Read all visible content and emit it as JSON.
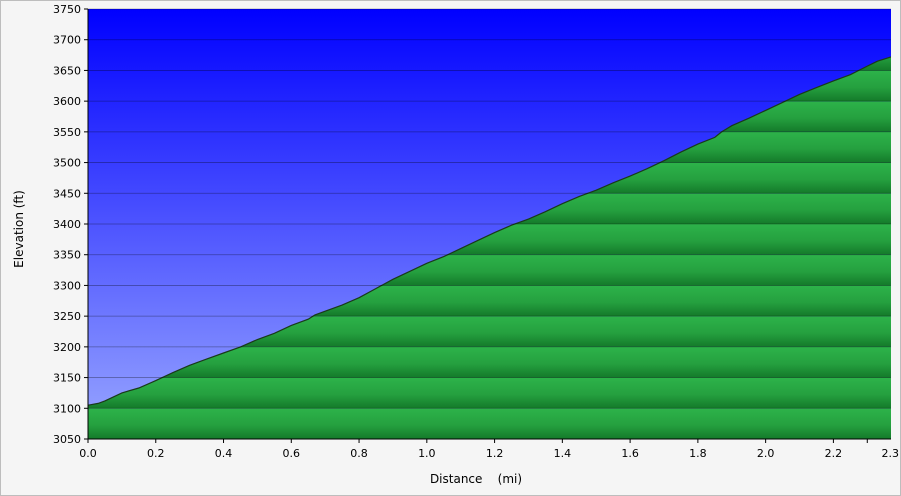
{
  "chart_data": {
    "type": "area",
    "title": "",
    "xlabel": "Distance    (mi)",
    "ylabel": "Elevation (ft)",
    "xlim": [
      0.0,
      2.37
    ],
    "ylim": [
      3050,
      3750
    ],
    "xticks": [
      0.0,
      0.2,
      0.4,
      0.6,
      0.8,
      1.0,
      1.2,
      1.4,
      1.6,
      1.8,
      2.0,
      2.2,
      2.3
    ],
    "xtick_labels": [
      "0.0",
      "0.2",
      "0.4",
      "0.6",
      "0.8",
      "1.0",
      "1.2",
      "1.4",
      "1.6",
      "1.8",
      "2.0",
      "2.2",
      "2.3"
    ],
    "yticks": [
      3050,
      3100,
      3150,
      3200,
      3250,
      3300,
      3350,
      3400,
      3450,
      3500,
      3550,
      3600,
      3650,
      3700,
      3750
    ],
    "ytick_labels": [
      "3050",
      "3100",
      "3150",
      "3200",
      "3250",
      "3300",
      "3350",
      "3400",
      "3450",
      "3500",
      "3550",
      "3600",
      "3650",
      "3700",
      "3750"
    ],
    "grid": true,
    "colors": {
      "sky_top": "#0000ff",
      "sky_bottom": "#9aa8ff",
      "fill_light": "#2db34a",
      "fill_dark": "#147a2a",
      "line": "#1a3a1a"
    },
    "x": [
      0.0,
      0.03,
      0.05,
      0.1,
      0.15,
      0.2,
      0.25,
      0.3,
      0.35,
      0.4,
      0.45,
      0.5,
      0.55,
      0.6,
      0.65,
      0.67,
      0.7,
      0.75,
      0.8,
      0.85,
      0.9,
      0.95,
      1.0,
      1.05,
      1.1,
      1.15,
      1.2,
      1.25,
      1.3,
      1.35,
      1.4,
      1.45,
      1.5,
      1.55,
      1.6,
      1.65,
      1.7,
      1.75,
      1.8,
      1.85,
      1.87,
      1.9,
      1.95,
      2.0,
      2.05,
      2.1,
      2.15,
      2.2,
      2.25,
      2.3,
      2.33,
      2.37
    ],
    "y": [
      3105,
      3108,
      3112,
      3125,
      3133,
      3145,
      3158,
      3170,
      3180,
      3190,
      3200,
      3212,
      3222,
      3235,
      3245,
      3252,
      3258,
      3268,
      3280,
      3295,
      3310,
      3323,
      3336,
      3347,
      3360,
      3373,
      3386,
      3398,
      3408,
      3420,
      3433,
      3445,
      3455,
      3467,
      3478,
      3490,
      3503,
      3517,
      3530,
      3541,
      3550,
      3560,
      3572,
      3585,
      3598,
      3611,
      3622,
      3633,
      3643,
      3657,
      3665,
      3672
    ]
  }
}
